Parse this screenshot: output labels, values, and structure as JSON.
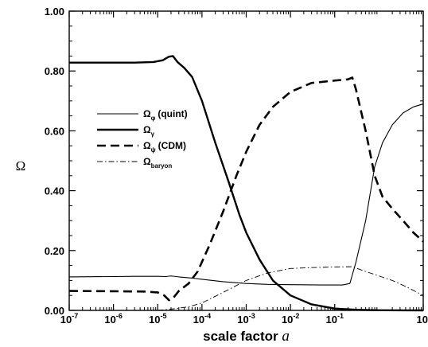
{
  "chart_data": {
    "type": "line",
    "xlabel": "scale factor ",
    "xlabel_var": "a",
    "ylabel": "Ω",
    "xscale": "log",
    "xlim": [
      1e-07,
      10
    ],
    "ylim": [
      0,
      1.0
    ],
    "x_ticks": [
      {
        "value": 1e-07,
        "base": "10",
        "exp": "-7"
      },
      {
        "value": 1e-06,
        "base": "10",
        "exp": "-6"
      },
      {
        "value": 1e-05,
        "base": "10",
        "exp": "-5"
      },
      {
        "value": 0.0001,
        "base": "10",
        "exp": "-4"
      },
      {
        "value": 0.001,
        "base": "10",
        "exp": "-3"
      },
      {
        "value": 0.01,
        "base": "10",
        "exp": "-2"
      },
      {
        "value": 0.1,
        "base": "10",
        "exp": "-1"
      },
      {
        "value": 10,
        "base": "10",
        "exp": ""
      }
    ],
    "y_ticks": [
      {
        "value": 0.0,
        "label": "0.00"
      },
      {
        "value": 0.2,
        "label": "0.20"
      },
      {
        "value": 0.4,
        "label": "0.40"
      },
      {
        "value": 0.6,
        "label": "0.60"
      },
      {
        "value": 0.8,
        "label": "0.80"
      },
      {
        "value": 1.0,
        "label": "1.00"
      }
    ],
    "grid": false,
    "legend_position": "center-left",
    "series": [
      {
        "name": "(quint)",
        "symbol": "Ω",
        "subscript": "φ",
        "style": "solid-thin",
        "points": [
          [
            1e-07,
            0.112
          ],
          [
            1e-06,
            0.113
          ],
          [
            3e-06,
            0.114
          ],
          [
            1e-05,
            0.114
          ],
          [
            1.5e-05,
            0.113
          ],
          [
            2e-05,
            0.115
          ],
          [
            3e-05,
            0.112
          ],
          [
            6e-05,
            0.108
          ],
          [
            0.0001,
            0.104
          ],
          [
            0.0003,
            0.096
          ],
          [
            0.001,
            0.09
          ],
          [
            0.003,
            0.087
          ],
          [
            0.01,
            0.086
          ],
          [
            0.05,
            0.085
          ],
          [
            0.15,
            0.085
          ],
          [
            0.22,
            0.09
          ],
          [
            0.3,
            0.16
          ],
          [
            0.5,
            0.3
          ],
          [
            0.8,
            0.48
          ],
          [
            1.2,
            0.56
          ],
          [
            2,
            0.62
          ],
          [
            3.5,
            0.66
          ],
          [
            6,
            0.68
          ],
          [
            10,
            0.69
          ]
        ]
      },
      {
        "name": "",
        "symbol": "Ω",
        "subscript": "γ",
        "style": "solid-thick",
        "points": [
          [
            1e-07,
            0.828
          ],
          [
            1e-06,
            0.828
          ],
          [
            3e-06,
            0.828
          ],
          [
            8e-06,
            0.83
          ],
          [
            1.3e-05,
            0.836
          ],
          [
            1.8e-05,
            0.848
          ],
          [
            2.2e-05,
            0.85
          ],
          [
            2.8e-05,
            0.83
          ],
          [
            4e-05,
            0.81
          ],
          [
            6e-05,
            0.78
          ],
          [
            0.0001,
            0.7
          ],
          [
            0.0002,
            0.56
          ],
          [
            0.0004,
            0.43
          ],
          [
            0.0007,
            0.32
          ],
          [
            0.001,
            0.26
          ],
          [
            0.002,
            0.17
          ],
          [
            0.004,
            0.1
          ],
          [
            0.01,
            0.05
          ],
          [
            0.03,
            0.02
          ],
          [
            0.1,
            0.006
          ],
          [
            0.3,
            0.002
          ],
          [
            1,
            0.0005
          ],
          [
            10,
            0.0
          ]
        ]
      },
      {
        "name": "(CDM)",
        "symbol": "Ω",
        "subscript": "ψ",
        "style": "dashed",
        "points": [
          [
            1e-07,
            0.065
          ],
          [
            1e-06,
            0.064
          ],
          [
            5e-06,
            0.063
          ],
          [
            1e-05,
            0.06
          ],
          [
            1.4e-05,
            0.05
          ],
          [
            1.8e-05,
            0.034
          ],
          [
            2.2e-05,
            0.04
          ],
          [
            3e-05,
            0.065
          ],
          [
            5e-05,
            0.09
          ],
          [
            8e-05,
            0.13
          ],
          [
            0.00015,
            0.22
          ],
          [
            0.0003,
            0.33
          ],
          [
            0.0006,
            0.45
          ],
          [
            0.001,
            0.53
          ],
          [
            0.002,
            0.62
          ],
          [
            0.004,
            0.68
          ],
          [
            0.01,
            0.73
          ],
          [
            0.03,
            0.76
          ],
          [
            0.1,
            0.768
          ],
          [
            0.2,
            0.772
          ],
          [
            0.25,
            0.778
          ],
          [
            0.3,
            0.74
          ],
          [
            0.5,
            0.6
          ],
          [
            0.8,
            0.45
          ],
          [
            1.2,
            0.38
          ],
          [
            2,
            0.34
          ],
          [
            3.5,
            0.3
          ],
          [
            6,
            0.26
          ],
          [
            10,
            0.23
          ]
        ]
      },
      {
        "name": "",
        "symbol": "Ω",
        "subscript": "baryon",
        "style": "dash-dot",
        "points": [
          [
            1e-05,
            0.0
          ],
          [
            2e-05,
            0.004
          ],
          [
            5e-05,
            0.012
          ],
          [
            0.0001,
            0.025
          ],
          [
            0.0003,
            0.06
          ],
          [
            0.001,
            0.1
          ],
          [
            0.003,
            0.125
          ],
          [
            0.01,
            0.14
          ],
          [
            0.03,
            0.143
          ],
          [
            0.1,
            0.145
          ],
          [
            0.25,
            0.146
          ],
          [
            0.5,
            0.13
          ],
          [
            1,
            0.115
          ],
          [
            2,
            0.1
          ],
          [
            4,
            0.08
          ],
          [
            10,
            0.05
          ]
        ]
      }
    ]
  }
}
